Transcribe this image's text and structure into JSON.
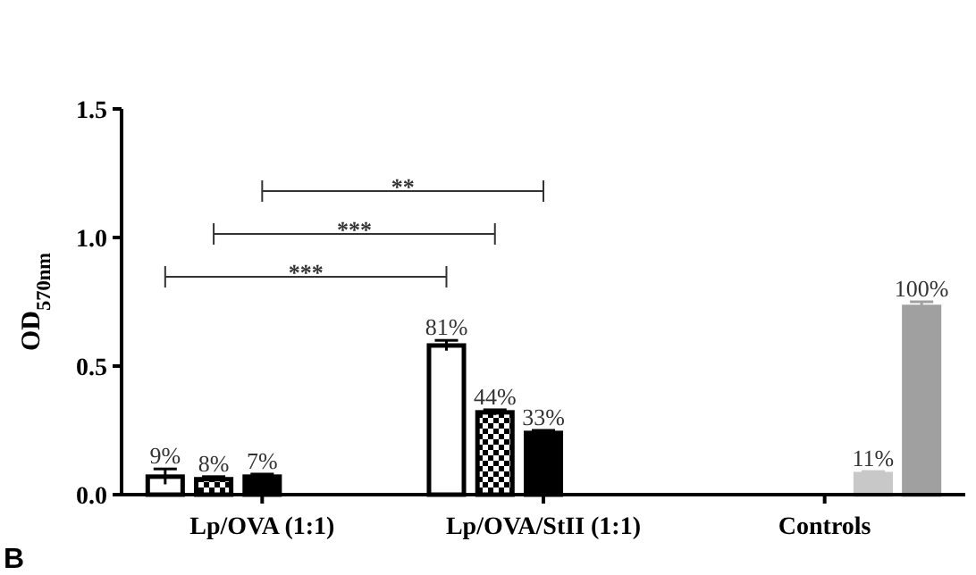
{
  "chart_data": {
    "type": "bar",
    "categories": [
      "Lp/OVA (1:1)",
      "Lp/OVA/StII (1:1)",
      "Controls"
    ],
    "ylabel": "OD$_{570nm}$",
    "ylim": [
      0,
      1.5
    ],
    "yticks": [
      {
        "value": 0,
        "label": "0.0"
      },
      0.5,
      {
        "value": 1,
        "label": "1.0"
      },
      1.5
    ],
    "grid": false,
    "series": [
      {
        "color": "#ffffff",
        "values": [
          0.07,
          0.58,
          null
        ],
        "errors": [
          0.03,
          0.02,
          null
        ]
      },
      {
        "color": "#000000",
        "values": [
          0.06,
          0.32,
          null
        ],
        "errors": [
          0.01,
          0.01,
          null
        ]
      },
      {
        "color": "#000000",
        "values": [
          0.07,
          0.24,
          null
        ],
        "errors": [
          0.01,
          0.01,
          null
        ]
      },
      {
        "color": "#c8c8c8",
        "values": [
          null,
          null,
          0.08
        ],
        "errors": [
          null,
          null,
          0.01
        ]
      },
      {
        "color": "#a0a0a0",
        "values": [
          null,
          null,
          0.73
        ],
        "errors": [
          null,
          null,
          0.02
        ]
      }
    ],
    "annotations": [
      "***",
      "***",
      "**",
      "B",
      "9%",
      "8%",
      "7%",
      "81%",
      "44%",
      "33%",
      "11%",
      "100%"
    ]
  }
}
